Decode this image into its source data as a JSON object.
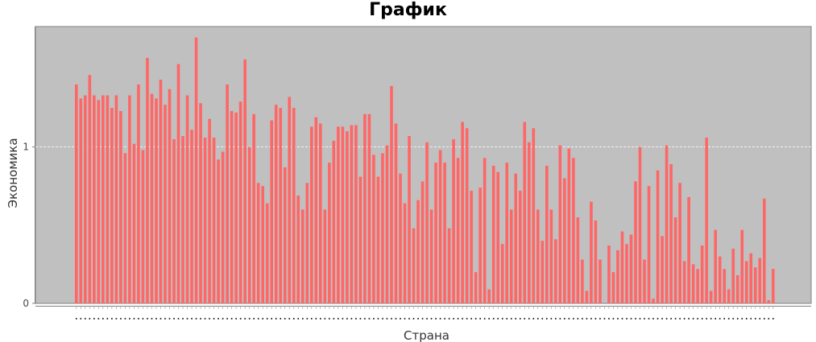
{
  "chart_data": {
    "type": "bar",
    "title": "График",
    "xlabel": "Страна",
    "ylabel": "Экономика",
    "ylim": [
      0,
      1.77
    ],
    "yticks": [
      0,
      1
    ],
    "ytick_labels": [
      "0",
      "1"
    ],
    "grid": true,
    "bar_color": "#ff6666",
    "plot_background": "#c0c0c0",
    "values": [
      1.4,
      1.31,
      1.33,
      1.46,
      1.33,
      1.3,
      1.33,
      1.33,
      1.25,
      1.33,
      1.23,
      0.96,
      1.33,
      1.02,
      1.4,
      0.98,
      1.57,
      1.34,
      1.31,
      1.43,
      1.27,
      1.37,
      1.05,
      1.53,
      1.07,
      1.33,
      1.11,
      1.7,
      1.28,
      1.06,
      1.18,
      1.06,
      0.92,
      0.97,
      1.4,
      1.23,
      1.22,
      1.29,
      1.56,
      1.0,
      1.21,
      0.77,
      0.75,
      0.64,
      1.17,
      1.27,
      1.25,
      0.87,
      1.32,
      1.25,
      0.69,
      0.6,
      0.77,
      1.13,
      1.19,
      1.15,
      0.6,
      0.9,
      1.04,
      1.13,
      1.13,
      1.1,
      1.14,
      1.14,
      0.81,
      1.21,
      1.21,
      0.95,
      0.81,
      0.96,
      1.01,
      1.39,
      1.15,
      0.83,
      0.64,
      1.07,
      0.48,
      0.66,
      0.78,
      1.03,
      0.6,
      0.9,
      0.98,
      0.9,
      0.48,
      1.05,
      0.93,
      1.16,
      1.12,
      0.72,
      0.2,
      0.74,
      0.93,
      0.09,
      0.88,
      0.84,
      0.38,
      0.9,
      0.6,
      0.83,
      0.72,
      1.16,
      1.03,
      1.12,
      0.6,
      0.4,
      0.88,
      0.6,
      0.41,
      1.01,
      0.8,
      0.99,
      0.93,
      0.55,
      0.28,
      0.08,
      0.65,
      0.53,
      0.28,
      0.0,
      0.37,
      0.2,
      0.34,
      0.46,
      0.38,
      0.44,
      0.78,
      1.0,
      0.28,
      0.75,
      0.03,
      0.85,
      0.43,
      1.01,
      0.89,
      0.55,
      0.77,
      0.27,
      0.68,
      0.25,
      0.22,
      0.37,
      1.06,
      0.08,
      0.47,
      0.3,
      0.22,
      0.09,
      0.35,
      0.18,
      0.47,
      0.27,
      0.32,
      0.23,
      0.29,
      0.67,
      0.02,
      0.22
    ]
  }
}
